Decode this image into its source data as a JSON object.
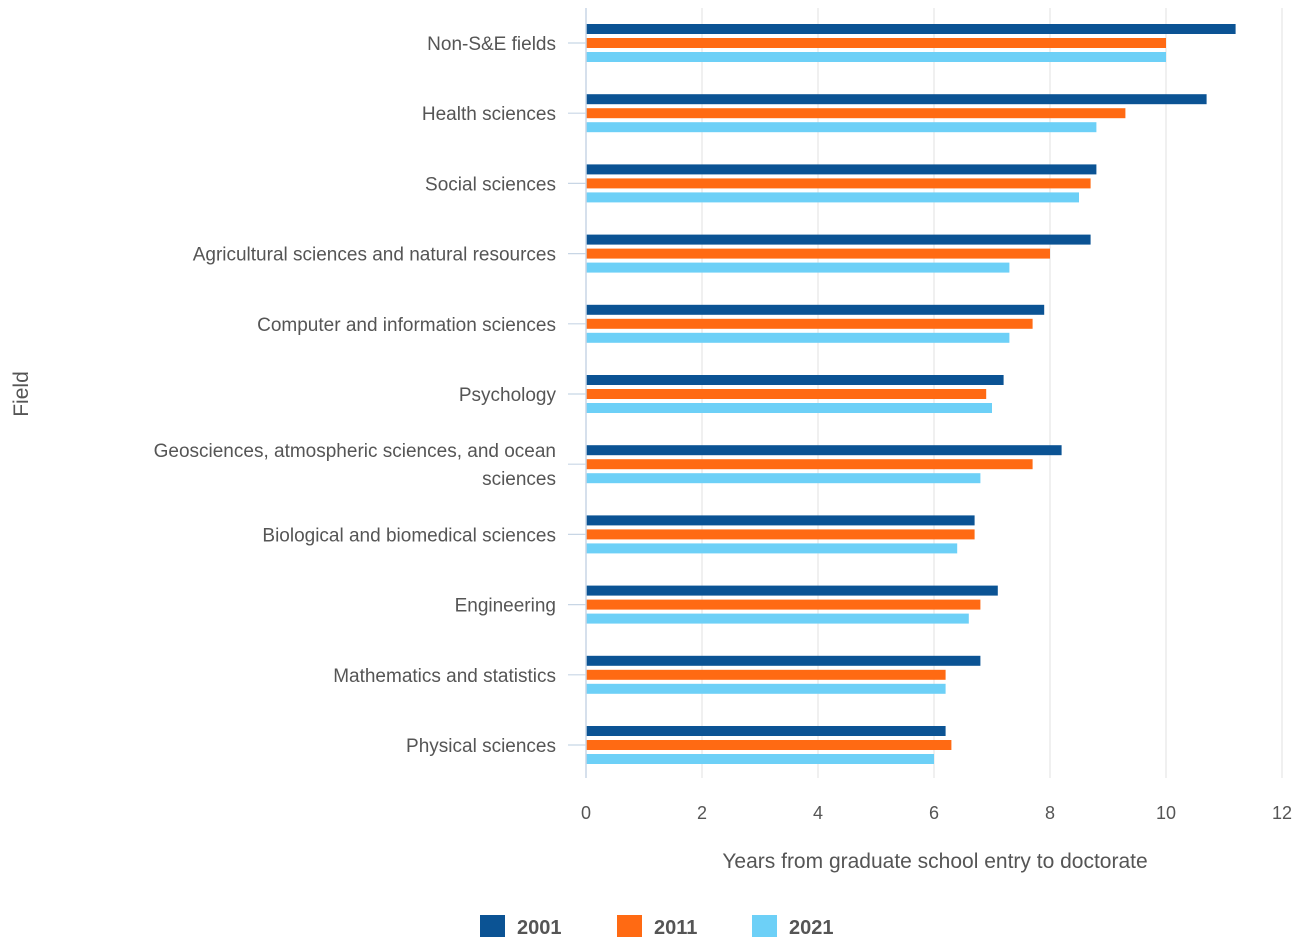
{
  "chart_data": {
    "type": "bar",
    "orientation": "horizontal",
    "categories": [
      "Non-S&E fields",
      "Health sciences",
      "Social sciences",
      "Agricultural sciences and natural resources",
      "Computer and information sciences",
      "Psychology",
      "Geosciences, atmospheric sciences, and ocean sciences",
      "Biological and biomedical sciences",
      "Engineering",
      "Mathematics and statistics",
      "Physical sciences"
    ],
    "category_lines": [
      [
        "Non-S&E fields"
      ],
      [
        "Health sciences"
      ],
      [
        "Social sciences"
      ],
      [
        "Agricultural sciences and natural resources"
      ],
      [
        "Computer and information sciences"
      ],
      [
        "Psychology"
      ],
      [
        "Geosciences, atmospheric sciences, and ocean",
        "sciences"
      ],
      [
        "Biological and biomedical sciences"
      ],
      [
        "Engineering"
      ],
      [
        "Mathematics and statistics"
      ],
      [
        "Physical sciences"
      ]
    ],
    "series": [
      {
        "name": "2001",
        "color": "#0b5394",
        "values": [
          11.2,
          10.7,
          8.8,
          8.7,
          7.9,
          7.2,
          8.2,
          6.7,
          7.1,
          6.8,
          6.2
        ]
      },
      {
        "name": "2011",
        "color": "#ff6a13",
        "values": [
          10.0,
          9.3,
          8.7,
          8.0,
          7.7,
          6.9,
          7.7,
          6.7,
          6.8,
          6.2,
          6.3
        ]
      },
      {
        "name": "2021",
        "color": "#6dd0f7",
        "values": [
          10.0,
          8.8,
          8.5,
          7.3,
          7.3,
          7.0,
          6.8,
          6.4,
          6.6,
          6.2,
          6.0
        ]
      }
    ],
    "xlabel": "Years from graduate school entry to doctorate",
    "ylabel": "Field",
    "xlim": [
      0,
      12
    ],
    "xticks": [
      "0",
      "2",
      "4",
      "6",
      "8",
      "10",
      "12"
    ],
    "grid": "vertical",
    "legend_position": "bottom"
  }
}
